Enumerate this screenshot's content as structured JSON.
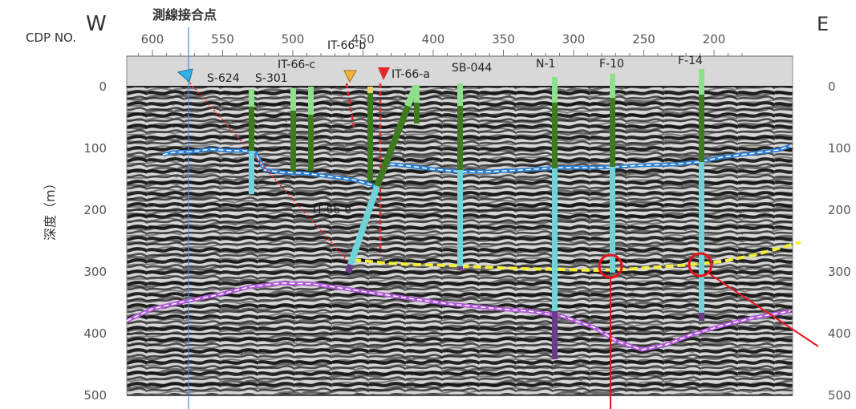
{
  "orientation": {
    "west": "W",
    "east": "E"
  },
  "junction_label": "測線接合点",
  "cdp_axis": {
    "label": "CDP NO.",
    "ticks": [
      600,
      550,
      500,
      450,
      400,
      350,
      300,
      250,
      200
    ]
  },
  "depth_axis": {
    "label": "深度（m）",
    "ticks": [
      0,
      100,
      200,
      300,
      400,
      500
    ],
    "right_ticks_partial": [
      "0",
      "100",
      "200",
      "300",
      "400",
      "500"
    ]
  },
  "well_labels": {
    "s624": "S-624",
    "s301": "S-301",
    "it66c": "IT-66-c",
    "it66b": "IT-66-b",
    "it66a": "IT-66-a",
    "sb044": "SB-044",
    "n1": "N-1",
    "f10": "F-10",
    "f14": "F-14",
    "it66e": "IT-66-e"
  },
  "colors": {
    "well_green": "#3e7a1e",
    "well_lightgreen": "#8fe08a",
    "well_cyan": "#6fd3d8",
    "well_purple": "#6b3b8a",
    "horizon_blue": "#2f7fd0",
    "horizon_yellow": "#f2ee3a",
    "horizon_purple": "#b05bd8",
    "fault_red": "#e0282d",
    "junction_line": "#4a8fd6",
    "circle_red": "#e8141c"
  }
}
